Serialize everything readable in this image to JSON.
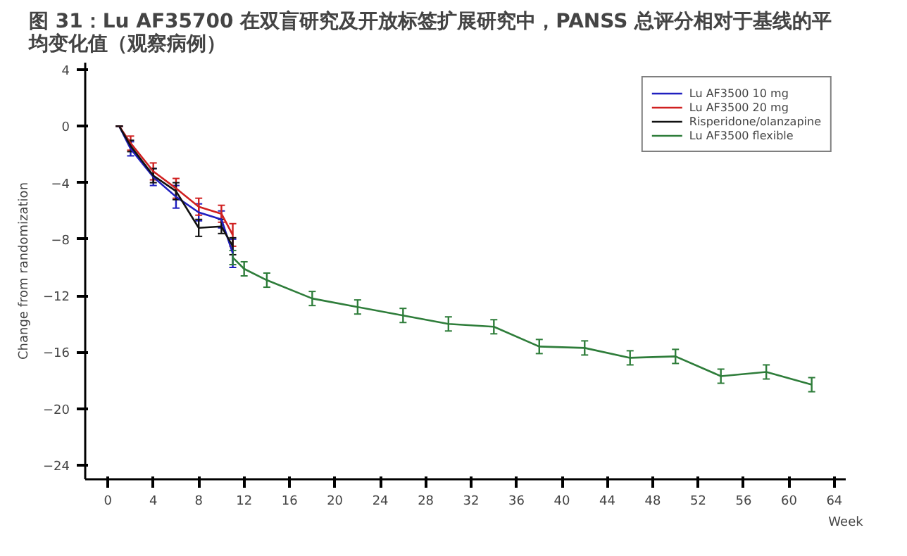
{
  "chart_data": {
    "type": "line",
    "title": "图 31：Lu AF35700 在双盲研究及开放标签扩展研究中，PANSS 总评分相对于基线的平均变化值（观察病例）",
    "xlabel": "Week",
    "ylabel": "Change from randomization",
    "xlim": [
      -2,
      65
    ],
    "ylim": [
      -25,
      4.5
    ],
    "xticks": [
      0,
      4,
      8,
      12,
      16,
      20,
      24,
      28,
      32,
      36,
      40,
      44,
      48,
      52,
      56,
      60,
      64
    ],
    "yticks": [
      -24,
      -20,
      -16,
      -12,
      -8,
      -4,
      0,
      4
    ],
    "grid": false,
    "legend": "top right",
    "marker": "none",
    "line_style": "solid",
    "series": [
      {
        "name": "Lu AF3500 10 mg",
        "color": "#1f1fbf",
        "x": [
          1,
          2,
          4,
          6,
          8,
          10,
          11
        ],
        "values": [
          0,
          -1.6,
          -3.6,
          -5.0,
          -6.1,
          -6.6,
          -9.0
        ],
        "errors": [
          0,
          0.5,
          0.6,
          0.8,
          0.6,
          0.6,
          1.0
        ]
      },
      {
        "name": "Lu AF3500 20 mg",
        "color": "#d02020",
        "x": [
          1,
          2,
          4,
          6,
          8,
          10,
          11
        ],
        "values": [
          0,
          -1.2,
          -3.2,
          -4.4,
          -5.7,
          -6.2,
          -7.7
        ],
        "errors": [
          0,
          0.5,
          0.6,
          0.7,
          0.6,
          0.6,
          0.8
        ]
      },
      {
        "name": "Risperidone/olanzapine",
        "color": "#111111",
        "x": [
          1,
          2,
          4,
          6,
          8,
          10,
          11
        ],
        "values": [
          0,
          -1.4,
          -3.5,
          -4.6,
          -7.2,
          -7.1,
          -8.5
        ],
        "errors": [
          0,
          0.4,
          0.5,
          0.6,
          0.6,
          0.5,
          0.6
        ]
      },
      {
        "name": "Lu AF3500 flexible",
        "color": "#2e7d3a",
        "x": [
          11,
          12,
          14,
          18,
          22,
          26,
          30,
          34,
          38,
          42,
          46,
          50,
          54,
          58,
          62
        ],
        "values": [
          -9.3,
          -10.1,
          -10.9,
          -12.2,
          -12.8,
          -13.4,
          -14.0,
          -14.2,
          -15.6,
          -15.7,
          -16.4,
          -16.3,
          -17.7,
          -17.4,
          -18.3
        ],
        "errors": [
          0.5,
          0.5,
          0.5,
          0.5,
          0.5,
          0.5,
          0.5,
          0.5,
          0.5,
          0.5,
          0.5,
          0.5,
          0.5,
          0.5,
          0.5
        ]
      }
    ]
  }
}
